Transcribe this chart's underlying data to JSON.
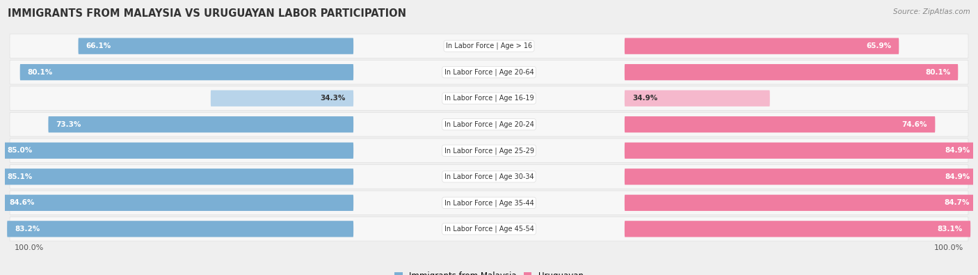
{
  "title": "IMMIGRANTS FROM MALAYSIA VS URUGUAYAN LABOR PARTICIPATION",
  "source": "Source: ZipAtlas.com",
  "categories": [
    "In Labor Force | Age > 16",
    "In Labor Force | Age 20-64",
    "In Labor Force | Age 16-19",
    "In Labor Force | Age 20-24",
    "In Labor Force | Age 25-29",
    "In Labor Force | Age 30-34",
    "In Labor Force | Age 35-44",
    "In Labor Force | Age 45-54"
  ],
  "malaysia_values": [
    66.1,
    80.1,
    34.3,
    73.3,
    85.0,
    85.1,
    84.6,
    83.2
  ],
  "uruguayan_values": [
    65.9,
    80.1,
    34.9,
    74.6,
    84.9,
    84.9,
    84.7,
    83.1
  ],
  "malaysia_color": "#7bafd4",
  "malaysia_color_light": "#b8d4ea",
  "uruguayan_color": "#f07ca0",
  "uruguayan_color_light": "#f5b8cc",
  "background_color": "#efefef",
  "row_bg_color": "#f7f7f7",
  "row_border_color": "#e0e0e0",
  "legend_malaysia": "Immigrants from Malaysia",
  "legend_uruguayan": "Uruguayan"
}
